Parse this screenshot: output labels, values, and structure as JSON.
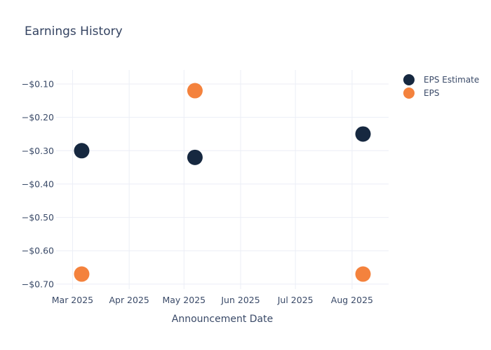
{
  "chart_data": {
    "type": "scatter",
    "title": "Earnings History",
    "xlabel": "Announcement Date",
    "ylabel": "",
    "x_range": [
      "2025-02-20",
      "2025-08-21"
    ],
    "y_range": [
      -0.715,
      -0.058
    ],
    "x_ticks": [
      {
        "date": "2025-03-01",
        "label": "Mar 2025"
      },
      {
        "date": "2025-04-01",
        "label": "Apr 2025"
      },
      {
        "date": "2025-05-01",
        "label": "May 2025"
      },
      {
        "date": "2025-06-01",
        "label": "Jun 2025"
      },
      {
        "date": "2025-07-01",
        "label": "Jul 2025"
      },
      {
        "date": "2025-08-01",
        "label": "Aug 2025"
      }
    ],
    "y_ticks": [
      {
        "value": -0.1,
        "label": "−$0.10"
      },
      {
        "value": -0.2,
        "label": "−$0.20"
      },
      {
        "value": -0.3,
        "label": "−$0.30"
      },
      {
        "value": -0.4,
        "label": "−$0.40"
      },
      {
        "value": -0.5,
        "label": "−$0.50"
      },
      {
        "value": -0.6,
        "label": "−$0.60"
      },
      {
        "value": -0.7,
        "label": "−$0.70"
      }
    ],
    "series": [
      {
        "name": "EPS Estimate",
        "color": "#162840",
        "points": [
          {
            "date": "2025-03-06",
            "value": -0.3
          },
          {
            "date": "2025-05-07",
            "value": -0.32
          },
          {
            "date": "2025-08-07",
            "value": -0.25
          }
        ]
      },
      {
        "name": "EPS",
        "color": "#F4823D",
        "points": [
          {
            "date": "2025-03-06",
            "value": -0.67
          },
          {
            "date": "2025-05-07",
            "value": -0.12
          },
          {
            "date": "2025-08-07",
            "value": -0.67
          }
        ]
      }
    ],
    "grid": true,
    "legend_position": "right",
    "marker_radius": 11,
    "colors": {
      "background": "#FFFFFF",
      "grid": "#EBEEF6",
      "text": "#3A4A68",
      "title": "#344361"
    }
  }
}
